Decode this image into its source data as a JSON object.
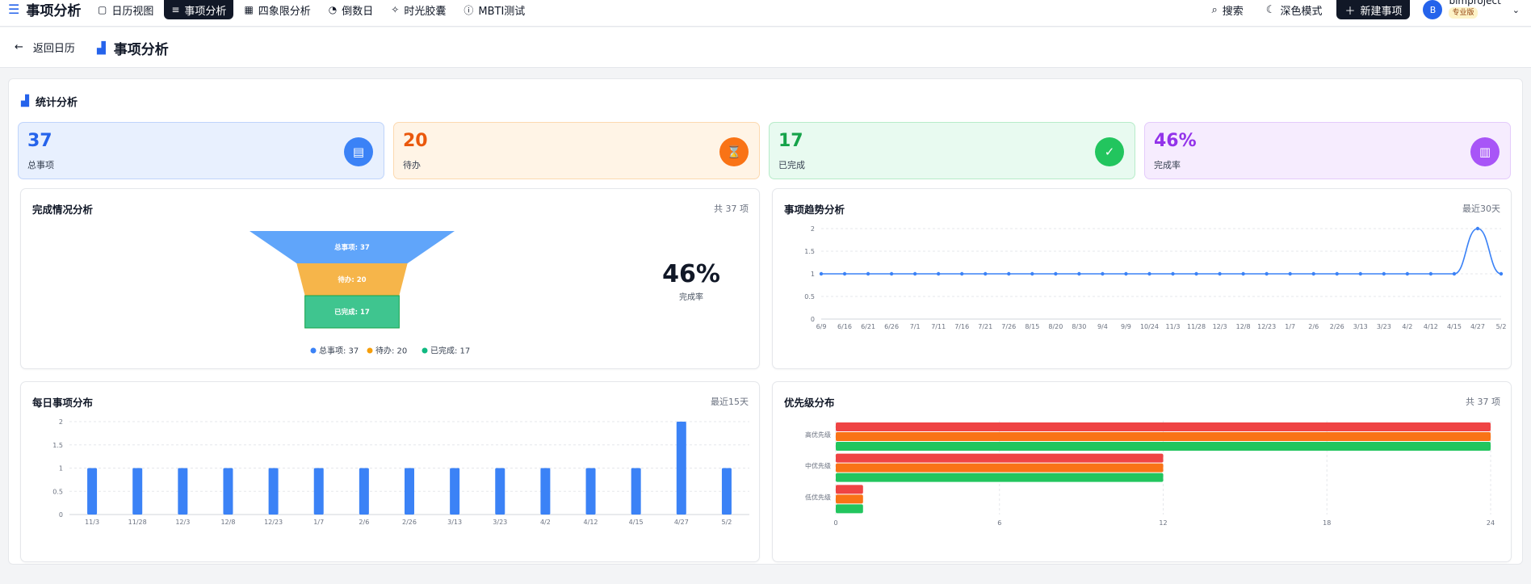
{
  "header": {
    "brand": "事项分析",
    "nav": [
      {
        "icon": "calendar-icon",
        "glyph": "▢",
        "label": "日历视图",
        "active": false
      },
      {
        "icon": "list-icon",
        "glyph": "≡",
        "label": "事项分析",
        "active": true
      },
      {
        "icon": "grid-icon",
        "glyph": "▦",
        "label": "四象限分析",
        "active": false
      },
      {
        "icon": "timer-icon",
        "glyph": "◔",
        "label": "倒数日",
        "active": false
      },
      {
        "icon": "sparkle-icon",
        "glyph": "✧",
        "label": "时光胶囊",
        "active": false
      },
      {
        "icon": "compass-icon",
        "glyph": "ⓘ",
        "label": "MBTI测试",
        "active": false
      }
    ],
    "search_label": "搜索",
    "dark_mode_label": "深色模式",
    "new_item_label": "新建事项",
    "avatar_initial": "B",
    "username": "bimproject",
    "plan": "专业版"
  },
  "subheader": {
    "back_label": "返回日历",
    "title": "事项分析"
  },
  "stats_section": {
    "title": "统计分析",
    "cards": [
      {
        "value": "37",
        "label": "总事项",
        "color": "#2563eb",
        "bg": "#e8f0fe",
        "border": "#bfd4fb",
        "badge": "#3b82f6",
        "icon": "clipboard-icon",
        "glyph": "▤"
      },
      {
        "value": "20",
        "label": "待办",
        "color": "#ea580c",
        "bg": "#fff4e6",
        "border": "#fcd9b0",
        "badge": "#f97316",
        "icon": "hourglass-icon",
        "glyph": "⌛"
      },
      {
        "value": "17",
        "label": "已完成",
        "color": "#16a34a",
        "bg": "#e8faf0",
        "border": "#b7ecc9",
        "badge": "#22c55e",
        "icon": "check-icon",
        "glyph": "✓"
      },
      {
        "value": "46%",
        "label": "完成率",
        "color": "#9333ea",
        "bg": "#f6ecfe",
        "border": "#e4cbfb",
        "badge": "#a855f7",
        "icon": "chart-icon",
        "glyph": "▥"
      }
    ]
  },
  "completion_card": {
    "title": "完成情况分析",
    "meta": "共 37 项",
    "rate": "46%",
    "rate_label": "完成率"
  },
  "trend_card": {
    "title": "事项趋势分析",
    "meta": "最近30天"
  },
  "daily_card": {
    "title": "每日事项分布",
    "meta": "最近15天"
  },
  "priority_card": {
    "title": "优先级分布",
    "meta": "共 37 项"
  },
  "chart_data": [
    {
      "type": "funnel",
      "stages": [
        {
          "name": "总事项",
          "value": 37,
          "label": "总事项: 37",
          "color": "#60a5fa"
        },
        {
          "name": "待办",
          "value": 20,
          "label": "待办: 20",
          "color": "#f6b54a"
        },
        {
          "name": "已完成",
          "value": 17,
          "label": "已完成: 17",
          "color": "#3fc58f"
        }
      ],
      "legend": [
        "总事项: 37",
        "待办: 20",
        "已完成: 17"
      ],
      "legend_colors": [
        "#3b82f6",
        "#f59e0b",
        "#10b981"
      ]
    },
    {
      "type": "line",
      "x": [
        "6/9",
        "6/16",
        "6/21",
        "6/26",
        "7/1",
        "7/11",
        "7/16",
        "7/21",
        "7/26",
        "8/15",
        "8/20",
        "8/30",
        "9/4",
        "9/9",
        "10/24",
        "11/3",
        "11/28",
        "12/3",
        "12/8",
        "12/23",
        "1/7",
        "2/6",
        "2/26",
        "3/13",
        "3/23",
        "4/2",
        "4/12",
        "4/15",
        "4/27",
        "5/2"
      ],
      "values": [
        1,
        1,
        1,
        1,
        1,
        1,
        1,
        1,
        1,
        1,
        1,
        1,
        1,
        1,
        1,
        1,
        1,
        1,
        1,
        1,
        1,
        1,
        1,
        1,
        1,
        1,
        1,
        1,
        2,
        1
      ],
      "ylim": [
        0,
        2
      ],
      "yticks": [
        "0",
        "0.5",
        "1",
        "1.5",
        "2"
      ],
      "color": "#3b82f6",
      "grid": true
    },
    {
      "type": "bar",
      "categories": [
        "11/3",
        "11/28",
        "12/3",
        "12/8",
        "12/23",
        "1/7",
        "2/6",
        "2/26",
        "3/13",
        "3/23",
        "4/2",
        "4/12",
        "4/15",
        "4/27",
        "5/2"
      ],
      "values": [
        1,
        1,
        1,
        1,
        1,
        1,
        1,
        1,
        1,
        1,
        1,
        1,
        1,
        2,
        1
      ],
      "ylim": [
        0,
        2
      ],
      "yticks": [
        "0",
        "0.5",
        "1",
        "1.5",
        "2"
      ],
      "color": "#3b82f6",
      "grid": true
    },
    {
      "type": "bar",
      "orientation": "horizontal",
      "categories": [
        "高优先级",
        "中优先级",
        "低优先级"
      ],
      "series": [
        {
          "values": [
            24,
            12,
            1
          ],
          "color": "#ef4444"
        },
        {
          "values": [
            24,
            12,
            1
          ],
          "color": "#f97316"
        },
        {
          "values": [
            24,
            12,
            1
          ],
          "color": "#22c55e"
        }
      ],
      "xlim": [
        0,
        24
      ],
      "xticks": [
        "0",
        "6",
        "12",
        "18",
        "24"
      ],
      "grid": true
    }
  ]
}
